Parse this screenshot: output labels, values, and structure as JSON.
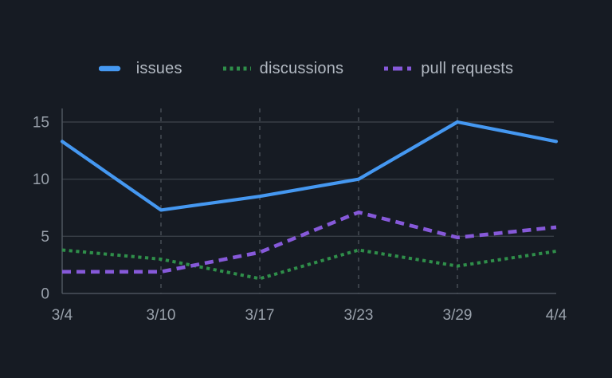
{
  "colors": {
    "background": "#161b23",
    "legend_text": "#b2b9c2",
    "axis_text": "#99a1ab",
    "grid_line": "#383e46",
    "grid_dash_line": "#4a5059",
    "axis_line": "#4c535c"
  },
  "chart_data": {
    "type": "line",
    "title": "",
    "xlabel": "",
    "ylabel": "",
    "categories": [
      "3/4",
      "3/10",
      "3/17",
      "3/23",
      "3/29",
      "4/4"
    ],
    "series": [
      {
        "name": "issues",
        "color": "#4598f1",
        "dash": "solid",
        "values": [
          13.3,
          7.3,
          8.5,
          10,
          15,
          13.3
        ]
      },
      {
        "name": "discussions",
        "color": "#2f8f4a",
        "dash": "dotted",
        "values": [
          3.8,
          3.0,
          1.3,
          3.8,
          2.4,
          3.7
        ]
      },
      {
        "name": "pull requests",
        "color": "#8659d9",
        "dash": "dashed",
        "values": [
          1.9,
          1.9,
          3.6,
          7.1,
          4.9,
          5.8
        ]
      }
    ],
    "yticks": [
      0,
      5,
      10,
      15
    ],
    "ylim": [
      0,
      16.2
    ],
    "grid": "horizontal-solid, vertical-dashed at interior x ticks",
    "legend_position": "top"
  }
}
